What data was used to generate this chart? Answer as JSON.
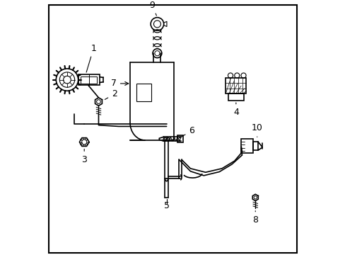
{
  "bg_color": "#ffffff",
  "border_color": "#000000",
  "line_color": "#000000",
  "line_width": 1.2,
  "label_fontsize": 9
}
